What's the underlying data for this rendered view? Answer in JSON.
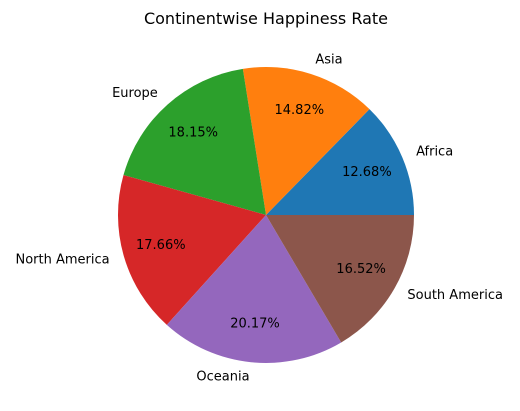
{
  "chart_data": {
    "type": "pie",
    "title": "Continentwise Happiness Rate",
    "start_angle_deg": 0,
    "direction": "counterclockwise",
    "slices": [
      {
        "label": "Africa",
        "value": 12.68,
        "pct_label": "12.68%",
        "color": "#1f77b4"
      },
      {
        "label": "Asia",
        "value": 14.82,
        "pct_label": "14.82%",
        "color": "#ff7f0e"
      },
      {
        "label": "Europe",
        "value": 18.15,
        "pct_label": "18.15%",
        "color": "#2ca02c"
      },
      {
        "label": "North America",
        "value": 17.66,
        "pct_label": "17.66%",
        "color": "#d62728"
      },
      {
        "label": "Oceania",
        "value": 20.17,
        "pct_label": "20.17%",
        "color": "#9467bd"
      },
      {
        "label": "South America",
        "value": 16.52,
        "pct_label": "16.52%",
        "color": "#8c564b"
      }
    ]
  }
}
